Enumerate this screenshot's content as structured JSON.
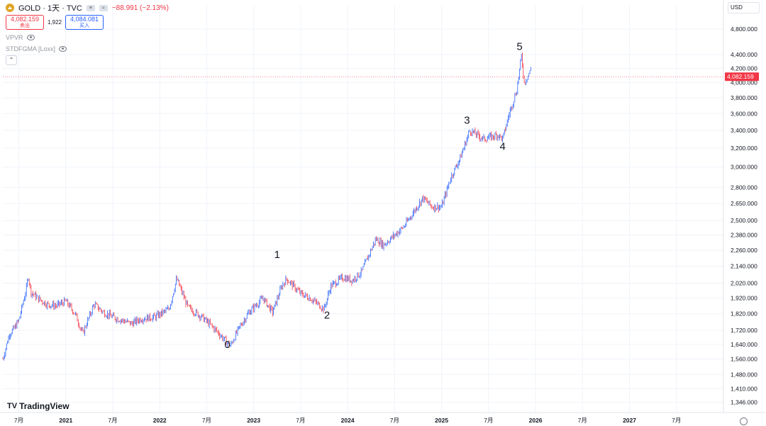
{
  "symbol": {
    "title": "GOLD · 1天 · TVC",
    "change": "−88.991 (−2.13%)",
    "sell_price": "4,082.159",
    "sell_label": "卖出",
    "spread": "1,922",
    "buy_price": "4,084.081",
    "buy_label": "买入",
    "logo_color": "#e0a526"
  },
  "indicators": [
    {
      "name": "VPVR",
      "icon": "eye-icon"
    },
    {
      "name": "STDFGMA [Loxx]",
      "icon": "eye-icon"
    }
  ],
  "currency": "USD",
  "last_price_label": "4,082.159",
  "logo_text": "TradingView",
  "colors": {
    "up": "#2962ff",
    "down": "#f23645",
    "last_price": "#f23645",
    "grid": "#f0f3fa",
    "axis_text": "#131722"
  },
  "chart_data": {
    "type": "line",
    "title": "",
    "xlabel": "",
    "ylabel": "",
    "y_scale": "log",
    "ylim": [
      1300,
      5200
    ],
    "xlim": [
      2020.33,
      2028.0
    ],
    "y_ticks": [
      1346,
      1410,
      1480,
      1560,
      1640,
      1720,
      1820,
      1920,
      2020,
      2140,
      2260,
      2380,
      2500,
      2650,
      2800,
      3000,
      3200,
      3400,
      3600,
      3800,
      4000,
      4200,
      4400,
      4800
    ],
    "y_tick_labels": [
      "1,346.000",
      "1,410.000",
      "1,480.000",
      "1,560.000",
      "1,640.000",
      "1,720.000",
      "1,820.000",
      "1,920.000",
      "2,020.000",
      "2,140.000",
      "2,260.000",
      "2,380.000",
      "2,500.000",
      "2,650.000",
      "2,800.000",
      "3,000.000",
      "3,200.000",
      "3,400.000",
      "3,600.000",
      "3,800.000",
      "4,000.000",
      "4,200.000",
      "4,400.000",
      "4,800.000"
    ],
    "x_ticks": [
      {
        "x": 2020.5,
        "label": "7月"
      },
      {
        "x": 2021.0,
        "label": "2021"
      },
      {
        "x": 2021.5,
        "label": "7月"
      },
      {
        "x": 2022.0,
        "label": "2022"
      },
      {
        "x": 2022.5,
        "label": "7月"
      },
      {
        "x": 2023.0,
        "label": "2023"
      },
      {
        "x": 2023.5,
        "label": "7月"
      },
      {
        "x": 2024.0,
        "label": "2024"
      },
      {
        "x": 2024.5,
        "label": "7月"
      },
      {
        "x": 2025.0,
        "label": "2025"
      },
      {
        "x": 2025.5,
        "label": "7月"
      },
      {
        "x": 2026.0,
        "label": "2026"
      },
      {
        "x": 2026.5,
        "label": "7月"
      },
      {
        "x": 2027.0,
        "label": "2027"
      },
      {
        "x": 2027.5,
        "label": "7月"
      }
    ],
    "last_price": 4082.159,
    "series": [
      {
        "x": [
          2020.33,
          2020.4,
          2020.45,
          2020.5,
          2020.58,
          2020.6,
          2020.63,
          2020.7,
          2020.8,
          2020.9,
          2021.0,
          2021.1,
          2021.18,
          2021.3,
          2021.4,
          2021.5,
          2021.6,
          2021.7,
          2021.8,
          2021.95,
          2022.1,
          2022.18,
          2022.3,
          2022.45,
          2022.6,
          2022.75,
          2022.85,
          2022.95,
          2023.1,
          2023.2,
          2023.3,
          2023.35,
          2023.5,
          2023.6,
          2023.75,
          2023.82,
          2023.95,
          2024.05,
          2024.15,
          2024.3,
          2024.38,
          2024.5,
          2024.6,
          2024.8,
          2024.9,
          2025.0,
          2025.1,
          2025.2,
          2025.3,
          2025.45,
          2025.6,
          2025.65,
          2025.72,
          2025.8,
          2025.85,
          2025.88,
          2025.92,
          2025.95
        ],
        "y": [
          1560,
          1700,
          1730,
          1780,
          1980,
          2070,
          1960,
          1920,
          1880,
          1870,
          1900,
          1820,
          1700,
          1880,
          1830,
          1800,
          1780,
          1760,
          1790,
          1800,
          1850,
          2050,
          1860,
          1800,
          1720,
          1630,
          1740,
          1830,
          1920,
          1830,
          2000,
          2050,
          1950,
          1920,
          1850,
          2000,
          2060,
          2040,
          2100,
          2350,
          2300,
          2380,
          2450,
          2700,
          2620,
          2620,
          2900,
          3100,
          3400,
          3300,
          3350,
          3300,
          3600,
          3900,
          4380,
          4000,
          4100,
          4180
        ]
      }
    ],
    "annotations": [
      {
        "text": "0",
        "x": 2022.72,
        "y": 1620
      },
      {
        "text": "1",
        "x": 2023.25,
        "y": 2200
      },
      {
        "text": "2",
        "x": 2023.78,
        "y": 1790
      },
      {
        "text": "3",
        "x": 2025.27,
        "y": 3480
      },
      {
        "text": "4",
        "x": 2025.65,
        "y": 3180
      },
      {
        "text": "5",
        "x": 2025.83,
        "y": 4470
      }
    ]
  }
}
